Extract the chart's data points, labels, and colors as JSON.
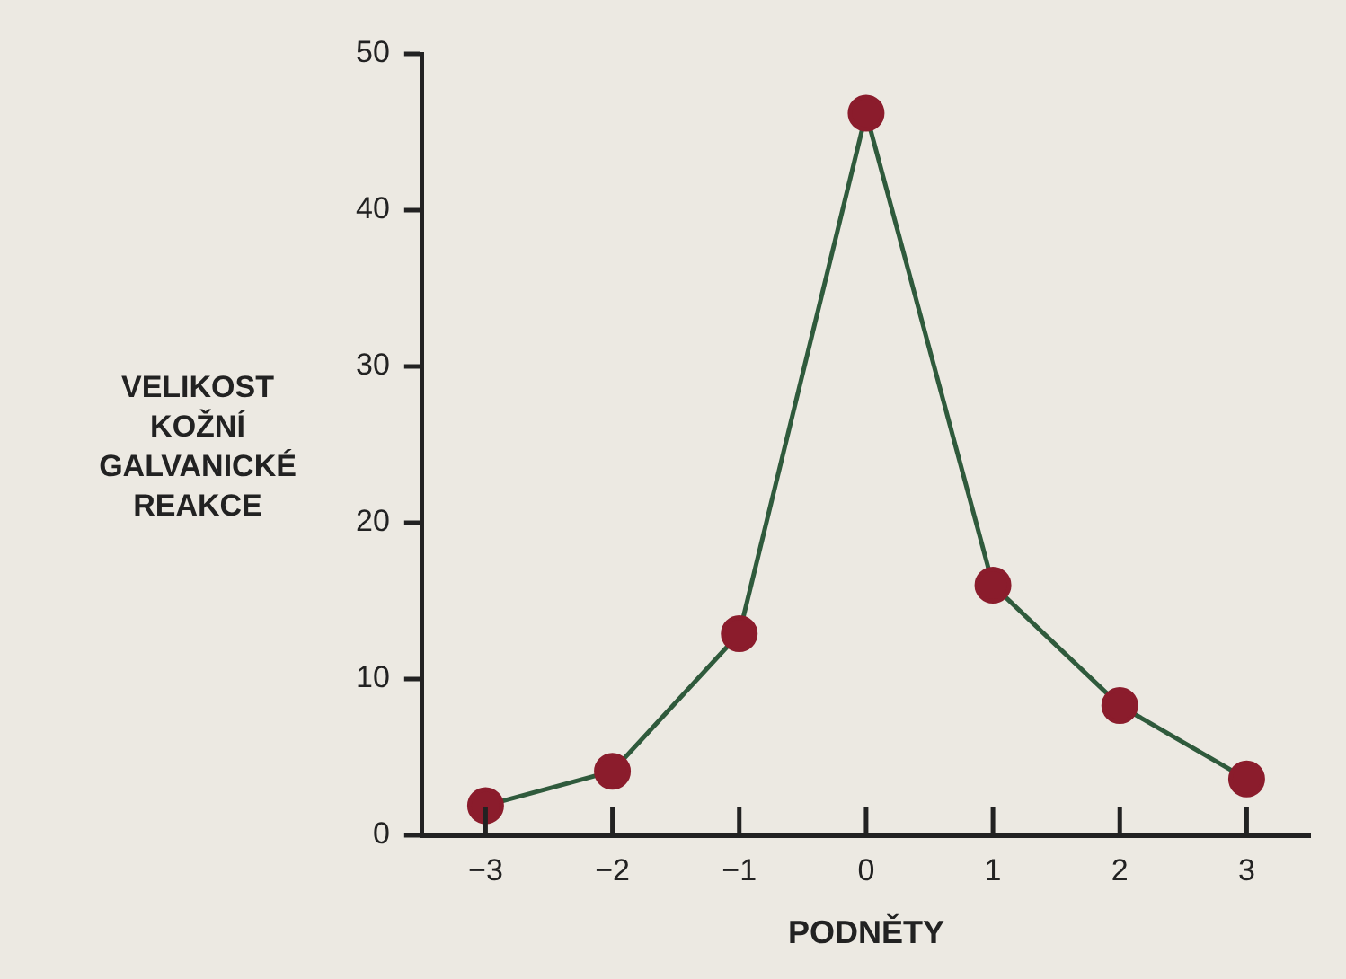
{
  "chart_data": {
    "type": "line",
    "xlabel": "PODNĚTY",
    "ylabel": "VELIKOST\nKOŽNÍ\nGALVANICKÉ\nREAKCE",
    "x": [
      -3,
      -2,
      -1,
      0,
      1,
      2,
      3
    ],
    "series": [
      {
        "color": "#2f5a3c",
        "values": [
          1.9,
          4.1,
          12.9,
          46.2,
          16.0,
          8.3,
          3.6
        ]
      }
    ],
    "marker": "circle",
    "xlim": [
      -3.5,
      3.5
    ],
    "xticks": [
      -3,
      -2,
      -1,
      0,
      1,
      2,
      3
    ],
    "ylim": [
      0,
      50
    ],
    "yticks": [
      0,
      10,
      20,
      30,
      40,
      50
    ],
    "grid": false,
    "legend": false
  }
}
